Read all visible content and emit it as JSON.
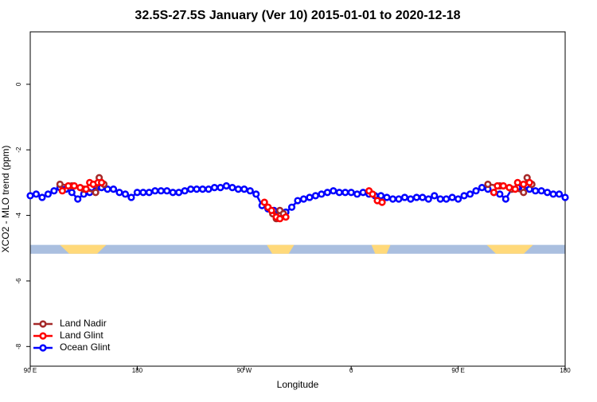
{
  "chart_data": {
    "type": "line",
    "title": "32.5S-27.5S January (Ver 10)   2015-01-01 to 2020-12-18",
    "x_label": "Longitude",
    "y_label": "XCO2 - MLO trend (ppm)",
    "xlim": [
      90,
      540
    ],
    "ylim": [
      1.6,
      -8.6
    ],
    "xticks": [
      {
        "value": 90,
        "label": "90 E"
      },
      180,
      {
        "value": 270,
        "label": "90 W"
      },
      {
        "value": 360,
        "label": "0"
      },
      {
        "value": 450,
        "label": "90 E"
      },
      {
        "value": 540,
        "label": "180"
      }
    ],
    "yticks": [
      0,
      -2,
      -4,
      -6,
      -8
    ],
    "legend": "bottom-left",
    "band": {
      "y": [
        -4.9,
        -5.17
      ],
      "ocean_color": "#aabfdf",
      "land_color": "#ffd97a",
      "land": [
        [
          115,
          154
        ],
        [
          289,
          312
        ],
        [
          377,
          393
        ],
        [
          474,
          513
        ]
      ]
    },
    "series": [
      {
        "name": "Ocean Glint",
        "color": "#0000ff",
        "x": [
          90,
          95,
          100,
          105,
          110,
          115,
          120,
          125,
          130,
          135,
          140,
          145,
          150,
          155,
          160,
          165,
          170,
          175,
          180,
          185,
          190,
          195,
          200,
          205,
          210,
          215,
          220,
          225,
          230,
          235,
          240,
          245,
          250,
          255,
          260,
          265,
          270,
          275,
          280,
          285,
          290,
          295,
          300,
          305,
          310,
          315,
          320,
          325,
          330,
          335,
          340,
          345,
          350,
          355,
          360,
          365,
          370,
          375,
          380,
          385,
          390,
          395,
          400,
          405,
          410,
          415,
          420,
          425,
          430,
          435,
          440,
          445,
          450,
          455,
          460,
          465,
          470,
          475,
          480,
          485,
          490,
          495,
          500,
          505,
          510,
          515,
          520,
          525,
          530,
          535,
          540
        ],
        "values": [
          -3.4,
          -3.35,
          -3.45,
          -3.35,
          -3.25,
          -3.15,
          -3.2,
          -3.3,
          -3.5,
          -3.35,
          -3.3,
          -3.25,
          -3.15,
          -3.2,
          -3.2,
          -3.3,
          -3.35,
          -3.45,
          -3.3,
          -3.3,
          -3.3,
          -3.25,
          -3.25,
          -3.25,
          -3.3,
          -3.3,
          -3.25,
          -3.2,
          -3.2,
          -3.2,
          -3.2,
          -3.15,
          -3.15,
          -3.1,
          -3.15,
          -3.2,
          -3.2,
          -3.25,
          -3.35,
          -3.7,
          -3.8,
          -3.85,
          -3.95,
          -3.9,
          -3.75,
          -3.55,
          -3.5,
          -3.45,
          -3.4,
          -3.35,
          -3.3,
          -3.25,
          -3.3,
          -3.3,
          -3.3,
          -3.35,
          -3.3,
          -3.35,
          -3.4,
          -3.4,
          -3.45,
          -3.5,
          -3.5,
          -3.45,
          -3.5,
          -3.45,
          -3.45,
          -3.5,
          -3.4,
          -3.5,
          -3.5,
          -3.45,
          -3.5,
          -3.4,
          -3.35,
          -3.25,
          -3.15,
          -3.2,
          -3.3,
          -3.35,
          -3.5,
          -3.2,
          -3.15,
          -3.2,
          -3.2,
          -3.25,
          -3.25,
          -3.3,
          -3.35,
          -3.35,
          -3.45
        ]
      },
      {
        "name": "Land Nadir",
        "color": "#a52a2a",
        "x": [
          115,
          125,
          135,
          145,
          148,
          152,
          null,
          290,
          294,
          297,
          300,
          303,
          null,
          475,
          485,
          495,
          505,
          508,
          512
        ],
        "values": [
          -3.05,
          -3.1,
          -3.2,
          -3.3,
          -2.85,
          -3.05,
          null,
          -3.75,
          -3.95,
          -4.1,
          -3.85,
          -3.95,
          null,
          -3.05,
          -3.1,
          -3.2,
          -3.3,
          -2.85,
          -3.05
        ]
      },
      {
        "name": "Land Glint",
        "color": "#ff0000",
        "x": [
          117,
          122,
          127,
          132,
          137,
          140,
          143,
          147,
          150,
          null,
          287,
          290,
          293,
          297,
          300,
          305,
          null,
          375,
          378,
          382,
          386,
          null,
          480,
          483,
          488,
          493,
          498,
          500,
          505,
          510
        ],
        "values": [
          -3.25,
          -3.1,
          -3.1,
          -3.15,
          -3.2,
          -3.0,
          -3.05,
          -3.0,
          -3.0,
          null,
          -3.6,
          -3.75,
          -3.85,
          -4.05,
          -4.1,
          -4.05,
          null,
          -3.25,
          -3.35,
          -3.55,
          -3.6,
          null,
          -3.3,
          -3.1,
          -3.1,
          -3.15,
          -3.2,
          -3.0,
          -3.05,
          -3.0
        ]
      }
    ]
  }
}
